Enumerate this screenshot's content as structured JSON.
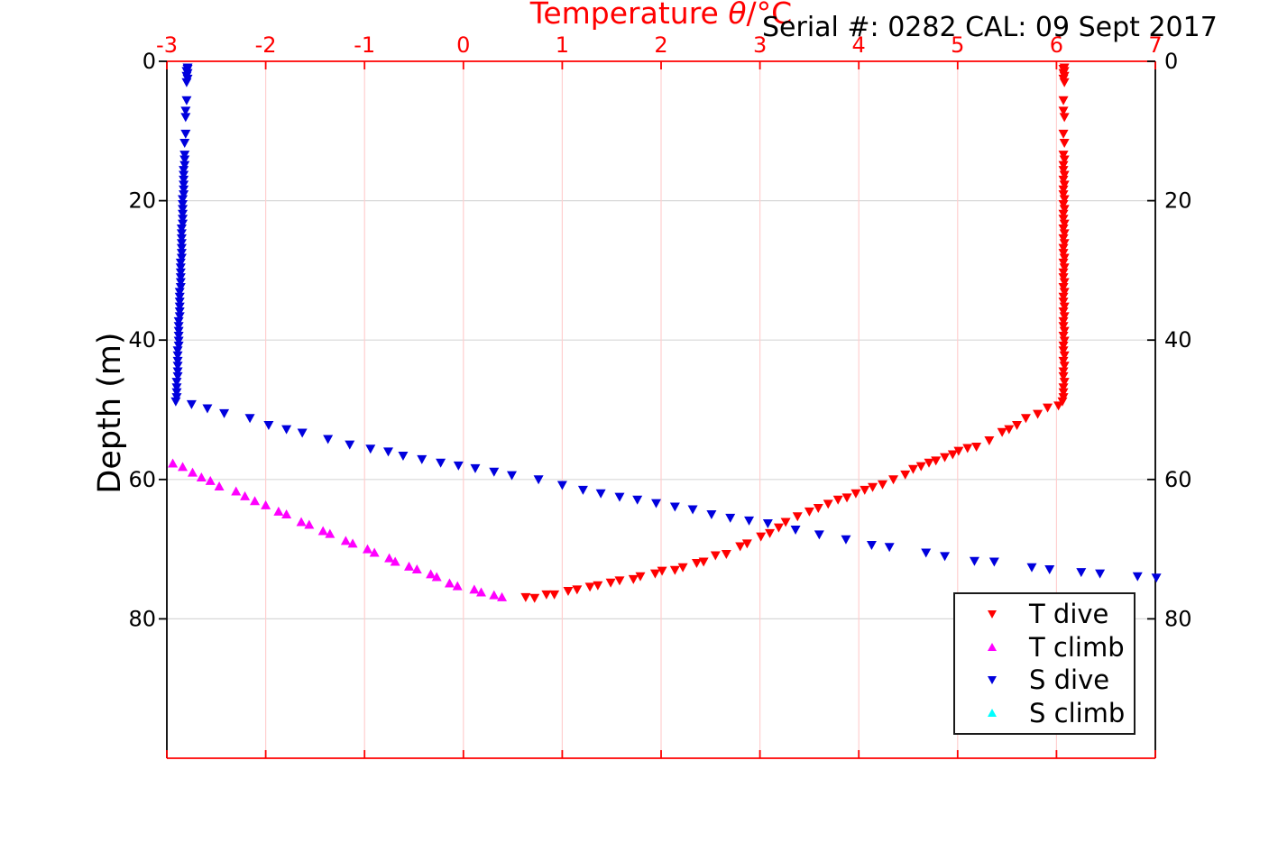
{
  "header": {
    "title_prefix": "Temperature ",
    "title_theta": "θ",
    "title_suffix": "/°C",
    "annotation": "Serial #: 0282  CAL: 09 Sept 2017"
  },
  "styles": {
    "axis_top_bottom_color": "#ff0000",
    "axis_left_right_color": "#000000",
    "x_tick_label_color": "#ff0000",
    "y_tick_label_color": "#000000",
    "x_grid_color": "#ffcfcf",
    "y_grid_color": "#d8d8d8"
  },
  "chart_data": {
    "type": "scatter",
    "title": "Temperature θ/°C",
    "xlabel": "Temperature θ/°C",
    "ylabel": "Depth (m)",
    "xlim": [
      -3,
      7
    ],
    "ylim": [
      0,
      100
    ],
    "y_inverted": true,
    "x_axis_position": "top",
    "grid": true,
    "xticks": [
      -3,
      -2,
      -1,
      0,
      1,
      2,
      3,
      4,
      5,
      6,
      7
    ],
    "yticks": [
      0,
      20,
      40,
      60,
      80
    ],
    "legend_position": "lower right",
    "series": [
      {
        "name": "T dive",
        "marker": "triangle-down",
        "color": "#ff0000",
        "points": [
          [
            6.08,
            0.9
          ],
          [
            6.07,
            1.1
          ],
          [
            6.08,
            1.4
          ],
          [
            6.07,
            1.7
          ],
          [
            6.08,
            2.1
          ],
          [
            6.07,
            2.5
          ],
          [
            6.08,
            3.0
          ],
          [
            6.07,
            5.6
          ],
          [
            6.07,
            7.1
          ],
          [
            6.08,
            8.0
          ],
          [
            6.07,
            10.4
          ],
          [
            6.08,
            11.7
          ],
          [
            6.07,
            13.4
          ],
          [
            6.08,
            14.1
          ],
          [
            6.07,
            14.9
          ],
          [
            6.07,
            15.6
          ],
          [
            6.08,
            16.3
          ],
          [
            6.07,
            17.0
          ],
          [
            6.08,
            17.7
          ],
          [
            6.07,
            18.4
          ],
          [
            6.07,
            19.1
          ],
          [
            6.08,
            19.8
          ],
          [
            6.07,
            20.5
          ],
          [
            6.08,
            21.2
          ],
          [
            6.07,
            21.9
          ],
          [
            6.07,
            22.6
          ],
          [
            6.08,
            23.3
          ],
          [
            6.07,
            24.0
          ],
          [
            6.08,
            24.7
          ],
          [
            6.07,
            25.4
          ],
          [
            6.08,
            26.1
          ],
          [
            6.07,
            26.8
          ],
          [
            6.07,
            27.5
          ],
          [
            6.08,
            28.2
          ],
          [
            6.07,
            28.9
          ],
          [
            6.08,
            29.6
          ],
          [
            6.07,
            30.3
          ],
          [
            6.07,
            31.0
          ],
          [
            6.08,
            31.7
          ],
          [
            6.07,
            32.4
          ],
          [
            6.08,
            33.1
          ],
          [
            6.07,
            33.8
          ],
          [
            6.07,
            34.5
          ],
          [
            6.08,
            35.2
          ],
          [
            6.07,
            35.9
          ],
          [
            6.08,
            36.6
          ],
          [
            6.07,
            37.3
          ],
          [
            6.07,
            38.0
          ],
          [
            6.08,
            38.7
          ],
          [
            6.07,
            39.4
          ],
          [
            6.08,
            40.1
          ],
          [
            6.07,
            40.8
          ],
          [
            6.07,
            41.5
          ],
          [
            6.08,
            42.2
          ],
          [
            6.07,
            43.0
          ],
          [
            6.08,
            43.7
          ],
          [
            6.07,
            44.5
          ],
          [
            6.07,
            45.2
          ],
          [
            6.08,
            46.0
          ],
          [
            6.07,
            46.8
          ],
          [
            6.07,
            47.5
          ],
          [
            6.07,
            48.2
          ],
          [
            6.06,
            48.8
          ],
          [
            6.02,
            49.4
          ],
          [
            5.91,
            49.7
          ],
          [
            5.81,
            50.6
          ],
          [
            5.69,
            51.2
          ],
          [
            5.6,
            52.2
          ],
          [
            5.52,
            52.8
          ],
          [
            5.45,
            53.2
          ],
          [
            5.32,
            54.4
          ],
          [
            5.19,
            55.3
          ],
          [
            5.1,
            55.5
          ],
          [
            5.01,
            55.9
          ],
          [
            4.95,
            56.4
          ],
          [
            4.87,
            56.8
          ],
          [
            4.78,
            57.3
          ],
          [
            4.71,
            57.6
          ],
          [
            4.63,
            58.1
          ],
          [
            4.55,
            58.5
          ],
          [
            4.47,
            59.3
          ],
          [
            4.35,
            60.0
          ],
          [
            4.24,
            60.7
          ],
          [
            4.14,
            61.1
          ],
          [
            4.06,
            61.5
          ],
          [
            3.97,
            62.0
          ],
          [
            3.88,
            62.6
          ],
          [
            3.79,
            62.9
          ],
          [
            3.69,
            63.5
          ],
          [
            3.59,
            64.1
          ],
          [
            3.5,
            64.6
          ],
          [
            3.38,
            65.3
          ],
          [
            3.26,
            66.1
          ],
          [
            3.19,
            66.9
          ],
          [
            3.1,
            67.7
          ],
          [
            3.01,
            68.2
          ],
          [
            2.87,
            69.2
          ],
          [
            2.8,
            69.6
          ],
          [
            2.66,
            70.7
          ],
          [
            2.55,
            70.9
          ],
          [
            2.43,
            71.8
          ],
          [
            2.36,
            72.0
          ],
          [
            2.22,
            72.6
          ],
          [
            2.14,
            73.0
          ],
          [
            2.01,
            73.1
          ],
          [
            1.94,
            73.5
          ],
          [
            1.79,
            73.9
          ],
          [
            1.72,
            74.3
          ],
          [
            1.58,
            74.5
          ],
          [
            1.49,
            74.8
          ],
          [
            1.36,
            75.2
          ],
          [
            1.28,
            75.4
          ],
          [
            1.15,
            75.8
          ],
          [
            1.06,
            76.0
          ],
          [
            0.92,
            76.5
          ],
          [
            0.84,
            76.5
          ],
          [
            0.72,
            77.0
          ],
          [
            0.63,
            76.9
          ]
        ]
      },
      {
        "name": "T climb",
        "marker": "triangle-up",
        "color": "#ff00ff",
        "points": [
          [
            0.39,
            76.9
          ],
          [
            0.31,
            76.6
          ],
          [
            0.18,
            76.2
          ],
          [
            0.11,
            75.8
          ],
          [
            -0.06,
            75.3
          ],
          [
            -0.14,
            74.9
          ],
          [
            -0.27,
            74.0
          ],
          [
            -0.33,
            73.6
          ],
          [
            -0.47,
            72.9
          ],
          [
            -0.55,
            72.5
          ],
          [
            -0.69,
            71.8
          ],
          [
            -0.75,
            71.3
          ],
          [
            -0.9,
            70.5
          ],
          [
            -0.97,
            70.0
          ],
          [
            -1.12,
            69.2
          ],
          [
            -1.19,
            68.8
          ],
          [
            -1.35,
            67.8
          ],
          [
            -1.42,
            67.4
          ],
          [
            -1.56,
            66.5
          ],
          [
            -1.64,
            66.1
          ],
          [
            -1.79,
            65.0
          ],
          [
            -1.87,
            64.6
          ],
          [
            -2.0,
            63.7
          ],
          [
            -2.11,
            63.1
          ],
          [
            -2.21,
            62.4
          ],
          [
            -2.3,
            61.7
          ],
          [
            -2.47,
            61.0
          ],
          [
            -2.56,
            60.2
          ],
          [
            -2.65,
            59.7
          ],
          [
            -2.74,
            59.0
          ],
          [
            -2.84,
            58.2
          ],
          [
            -2.94,
            57.7
          ]
        ]
      },
      {
        "name": "S dive",
        "marker": "triangle-down",
        "color": "#0000dd",
        "points": [
          [
            -2.79,
            0.9
          ],
          [
            -2.79,
            1.1
          ],
          [
            -2.8,
            1.4
          ],
          [
            -2.79,
            1.7
          ],
          [
            -2.8,
            2.1
          ],
          [
            -2.79,
            2.5
          ],
          [
            -2.8,
            3.0
          ],
          [
            -2.8,
            5.6
          ],
          [
            -2.81,
            7.1
          ],
          [
            -2.81,
            8.0
          ],
          [
            -2.81,
            10.4
          ],
          [
            -2.82,
            11.7
          ],
          [
            -2.82,
            13.4
          ],
          [
            -2.82,
            14.1
          ],
          [
            -2.82,
            14.9
          ],
          [
            -2.83,
            15.6
          ],
          [
            -2.83,
            16.3
          ],
          [
            -2.83,
            17.0
          ],
          [
            -2.83,
            17.7
          ],
          [
            -2.83,
            18.4
          ],
          [
            -2.83,
            19.1
          ],
          [
            -2.84,
            19.8
          ],
          [
            -2.84,
            20.5
          ],
          [
            -2.84,
            21.2
          ],
          [
            -2.84,
            21.9
          ],
          [
            -2.84,
            22.6
          ],
          [
            -2.84,
            23.3
          ],
          [
            -2.85,
            24.0
          ],
          [
            -2.85,
            24.7
          ],
          [
            -2.85,
            25.4
          ],
          [
            -2.85,
            26.1
          ],
          [
            -2.85,
            26.8
          ],
          [
            -2.85,
            27.5
          ],
          [
            -2.85,
            28.2
          ],
          [
            -2.86,
            28.9
          ],
          [
            -2.86,
            29.6
          ],
          [
            -2.86,
            30.3
          ],
          [
            -2.86,
            31.0
          ],
          [
            -2.86,
            31.7
          ],
          [
            -2.86,
            32.4
          ],
          [
            -2.87,
            33.1
          ],
          [
            -2.87,
            33.8
          ],
          [
            -2.87,
            34.5
          ],
          [
            -2.87,
            35.2
          ],
          [
            -2.87,
            35.9
          ],
          [
            -2.87,
            36.6
          ],
          [
            -2.88,
            37.3
          ],
          [
            -2.88,
            38.0
          ],
          [
            -2.88,
            38.7
          ],
          [
            -2.88,
            39.4
          ],
          [
            -2.88,
            40.1
          ],
          [
            -2.88,
            40.8
          ],
          [
            -2.89,
            41.5
          ],
          [
            -2.89,
            42.2
          ],
          [
            -2.89,
            43.0
          ],
          [
            -2.89,
            43.7
          ],
          [
            -2.89,
            44.5
          ],
          [
            -2.89,
            45.2
          ],
          [
            -2.9,
            46.0
          ],
          [
            -2.9,
            46.8
          ],
          [
            -2.9,
            47.5
          ],
          [
            -2.9,
            48.2
          ],
          [
            -2.91,
            48.8
          ],
          [
            -2.75,
            49.2
          ],
          [
            -2.59,
            49.8
          ],
          [
            -2.42,
            50.5
          ],
          [
            -2.16,
            51.2
          ],
          [
            -1.97,
            52.2
          ],
          [
            -1.79,
            52.8
          ],
          [
            -1.63,
            53.3
          ],
          [
            -1.37,
            54.2
          ],
          [
            -1.15,
            55.0
          ],
          [
            -0.94,
            55.6
          ],
          [
            -0.76,
            56.0
          ],
          [
            -0.61,
            56.6
          ],
          [
            -0.42,
            57.1
          ],
          [
            -0.23,
            57.6
          ],
          [
            -0.05,
            58.0
          ],
          [
            0.12,
            58.4
          ],
          [
            0.31,
            58.9
          ],
          [
            0.49,
            59.4
          ],
          [
            0.76,
            60.0
          ],
          [
            1.0,
            60.8
          ],
          [
            1.21,
            61.5
          ],
          [
            1.39,
            62.0
          ],
          [
            1.58,
            62.5
          ],
          [
            1.76,
            62.9
          ],
          [
            1.95,
            63.4
          ],
          [
            2.14,
            63.9
          ],
          [
            2.32,
            64.3
          ],
          [
            2.51,
            65.0
          ],
          [
            2.7,
            65.5
          ],
          [
            2.89,
            65.9
          ],
          [
            3.08,
            66.3
          ],
          [
            3.36,
            67.2
          ],
          [
            3.6,
            67.9
          ],
          [
            3.87,
            68.6
          ],
          [
            4.13,
            69.4
          ],
          [
            4.31,
            69.7
          ],
          [
            4.68,
            70.5
          ],
          [
            4.87,
            71.0
          ],
          [
            5.17,
            71.7
          ],
          [
            5.37,
            71.8
          ],
          [
            5.75,
            72.6
          ],
          [
            5.93,
            72.9
          ],
          [
            6.25,
            73.3
          ],
          [
            6.44,
            73.5
          ],
          [
            6.82,
            73.9
          ],
          [
            7.01,
            74.1
          ]
        ]
      },
      {
        "name": "S climb",
        "marker": "triangle-up",
        "color": "#00ffff",
        "points": []
      }
    ]
  }
}
